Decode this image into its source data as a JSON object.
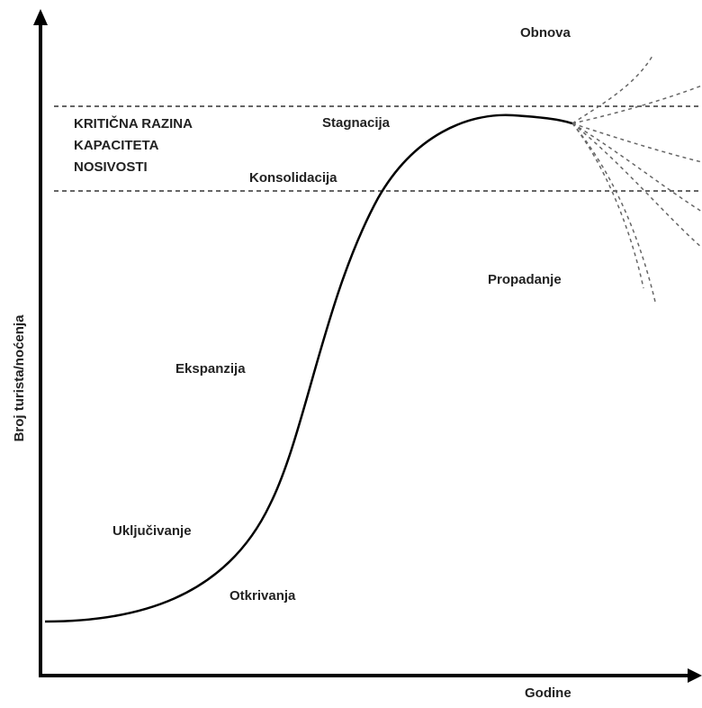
{
  "axes": {
    "y_label": "Broj turista/noćenja",
    "x_label": "Godine"
  },
  "critical_level": {
    "lines": [
      "KRITIČNA RAZINA",
      "KAPACITETA",
      "NOSIVOSTI"
    ]
  },
  "stages": {
    "recovery": "Obnova",
    "stagnation": "Stagnacija",
    "consolidation": "Konsolidacija",
    "decline": "Propadanje",
    "expansion": "Ekspanzija",
    "involvement": "Uključivanje",
    "exploration": "Otkrivanja"
  }
}
